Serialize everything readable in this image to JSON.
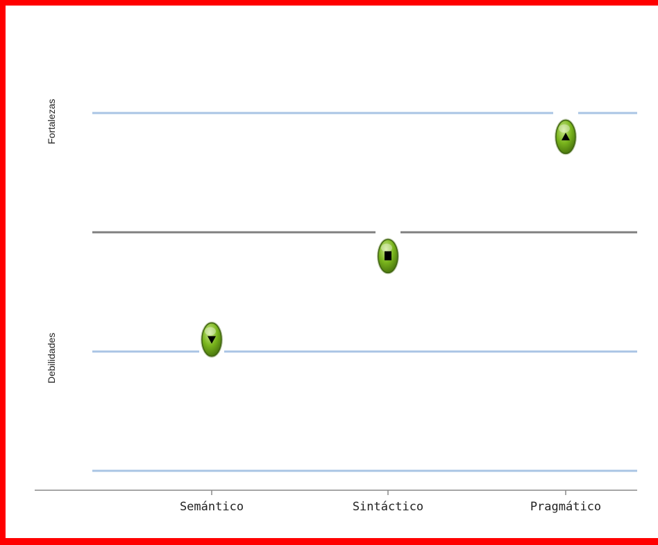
{
  "chart_data": {
    "type": "scatter",
    "categories": [
      "Semántico",
      "Sintáctico",
      "Pragmático"
    ],
    "points": [
      {
        "category": "Semántico",
        "value": -0.9,
        "marker": "down-triangle"
      },
      {
        "category": "Sintáctico",
        "value": -0.2,
        "marker": "square"
      },
      {
        "category": "Pragmático",
        "value": 0.8,
        "marker": "up-triangle"
      }
    ],
    "reference_lines": [
      {
        "value": 1,
        "style": "threshold"
      },
      {
        "value": 0,
        "style": "baseline"
      },
      {
        "value": -1,
        "style": "threshold"
      },
      {
        "value": -2,
        "style": "threshold"
      }
    ],
    "ylim": [
      -2.2,
      1.9
    ],
    "side_labels": {
      "top": "Fortalezas",
      "bottom": "Debilidades"
    },
    "colors": {
      "threshold_line": "#a9c4e4",
      "baseline": "#7f7f7f",
      "marker_fill": "#7ab51d",
      "marker_symbol": "#000000",
      "frame": "#ff0000"
    }
  }
}
